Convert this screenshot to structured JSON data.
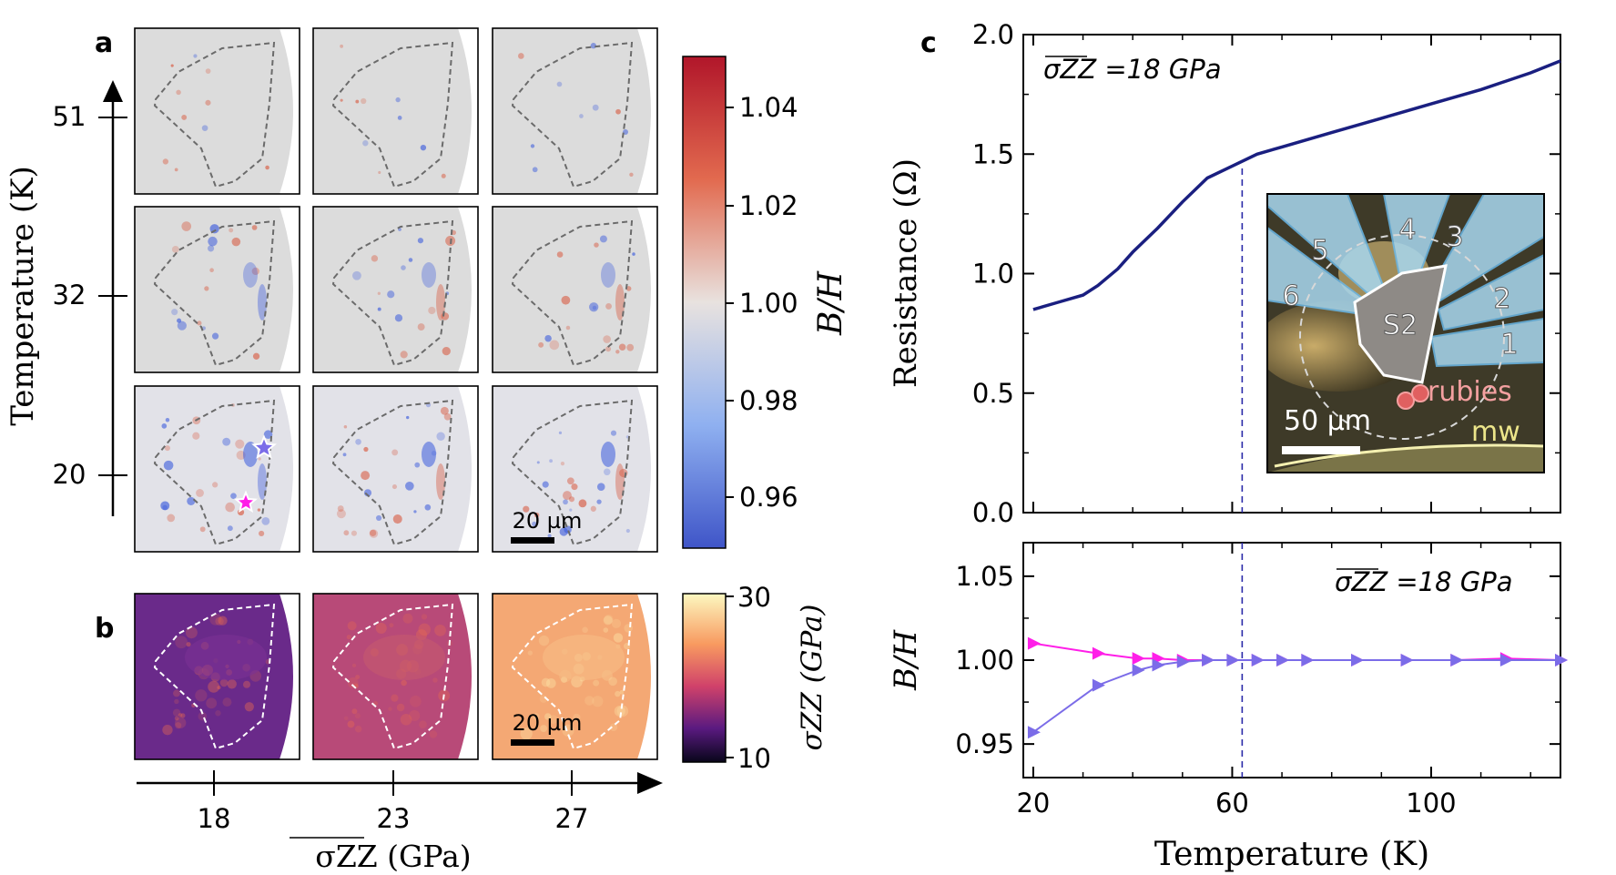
{
  "colors": {
    "frame": "#000000",
    "map_bg": "#dcdcdc",
    "blue": "#3b5bdc",
    "red": "#d8553a",
    "resistance_line": "#1a1f80",
    "series_magenta": "#ff1ee8",
    "series_violet": "#7b6ce8",
    "dashed_line": "#2a2aa8",
    "inset_electrode": "#a8d8f0",
    "rubies": "#f08080",
    "mw": "#ece58a"
  },
  "panel_a": {
    "label": "a",
    "y_axis_label": "Temperature (K)",
    "row_temperatures": [
      "51",
      "32",
      "20"
    ],
    "scale_bar": "20 µm",
    "colorbar": {
      "label": "B/H",
      "ticks": [
        "1.04",
        "1.02",
        "1.00",
        "0.98",
        "0.96"
      ],
      "range": [
        0.95,
        1.05
      ]
    }
  },
  "panel_b": {
    "label": "b",
    "scale_bar": "20 µm",
    "x_axis_label": "σZZ (GPa)",
    "x_ticks": [
      "18",
      "23",
      "27"
    ],
    "colorbar": {
      "label": "σZZ (GPa)",
      "ticks": [
        "30",
        "10"
      ],
      "range": [
        10,
        30
      ]
    }
  },
  "panel_c": {
    "label": "c",
    "annotation": "σZZ =18 GPa",
    "inset": {
      "electrodes": [
        "1",
        "2",
        "3",
        "4",
        "5",
        "6"
      ],
      "sample": "S2",
      "rubies": "rubies",
      "mw": "mw",
      "scale_bar": "50 µm"
    }
  },
  "chart_data": [
    {
      "type": "line",
      "title": "",
      "xlabel": "Temperature (K)",
      "ylabel": "Resistance (Ω)",
      "xlim": [
        18,
        126
      ],
      "ylim": [
        0.0,
        2.0
      ],
      "x_ticks": [
        "20",
        "60",
        "100"
      ],
      "y_ticks": [
        "0.0",
        "0.5",
        "1.0",
        "1.5",
        "2.0"
      ],
      "vline_x": 62,
      "series": [
        {
          "name": "Resistance",
          "x": [
            20,
            25,
            30,
            33,
            37,
            40,
            45,
            50,
            55,
            60,
            65,
            70,
            80,
            90,
            100,
            110,
            120,
            126
          ],
          "values": [
            0.85,
            0.88,
            0.91,
            0.95,
            1.02,
            1.09,
            1.19,
            1.3,
            1.4,
            1.45,
            1.5,
            1.53,
            1.59,
            1.65,
            1.71,
            1.77,
            1.84,
            1.89
          ]
        }
      ]
    },
    {
      "type": "line",
      "title": "",
      "xlabel": "Temperature (K)",
      "ylabel": "B/H",
      "xlim": [
        18,
        126
      ],
      "ylim": [
        0.93,
        1.07
      ],
      "x_ticks": [
        "20",
        "60",
        "100"
      ],
      "y_ticks": [
        "1.05",
        "1.00",
        "0.95"
      ],
      "vline_x": 62,
      "series": [
        {
          "name": "magenta-star",
          "x": [
            20,
            33,
            41,
            45,
            50,
            55,
            60,
            65,
            70,
            75,
            85,
            95,
            105,
            115,
            126
          ],
          "values": [
            1.01,
            1.004,
            1.001,
            1.001,
            1.0,
            1.0,
            1.0,
            1.0,
            1.0,
            1.0,
            1.0,
            1.0,
            1.0,
            1.001,
            1.0
          ]
        },
        {
          "name": "violet-star",
          "x": [
            20,
            33,
            41,
            45,
            50,
            55,
            60,
            65,
            70,
            75,
            85,
            95,
            105,
            115,
            126
          ],
          "values": [
            0.957,
            0.985,
            0.994,
            0.997,
            0.999,
            1.0,
            1.0,
            1.0,
            1.0,
            1.0,
            1.0,
            1.0,
            1.0,
            1.0,
            1.0
          ]
        }
      ]
    }
  ]
}
